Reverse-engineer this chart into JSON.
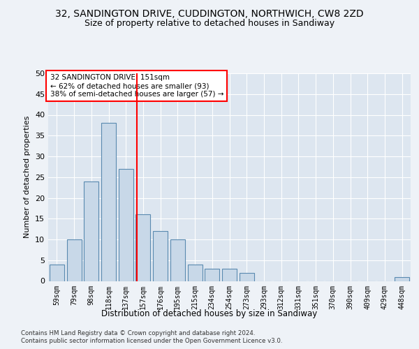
{
  "title_line1": "32, SANDINGTON DRIVE, CUDDINGTON, NORTHWICH, CW8 2ZD",
  "title_line2": "Size of property relative to detached houses in Sandiway",
  "xlabel": "Distribution of detached houses by size in Sandiway",
  "ylabel": "Number of detached properties",
  "categories": [
    "59sqm",
    "79sqm",
    "98sqm",
    "118sqm",
    "137sqm",
    "157sqm",
    "176sqm",
    "195sqm",
    "215sqm",
    "234sqm",
    "254sqm",
    "273sqm",
    "293sqm",
    "312sqm",
    "331sqm",
    "351sqm",
    "370sqm",
    "390sqm",
    "409sqm",
    "429sqm",
    "448sqm"
  ],
  "values": [
    4,
    10,
    24,
    38,
    27,
    16,
    12,
    10,
    4,
    3,
    3,
    2,
    0,
    0,
    0,
    0,
    0,
    0,
    0,
    0,
    1
  ],
  "bar_color": "#c8d8e8",
  "bar_edge_color": "#5a8ab0",
  "red_line_index": 5,
  "annotation_title": "32 SANDINGTON DRIVE: 151sqm",
  "annotation_line1": "← 62% of detached houses are smaller (93)",
  "annotation_line2": "38% of semi-detached houses are larger (57) →",
  "footer_line1": "Contains HM Land Registry data © Crown copyright and database right 2024.",
  "footer_line2": "Contains public sector information licensed under the Open Government Licence v3.0.",
  "ylim": [
    0,
    50
  ],
  "yticks": [
    0,
    5,
    10,
    15,
    20,
    25,
    30,
    35,
    40,
    45,
    50
  ],
  "bg_color": "#eef2f7",
  "plot_bg_color": "#dde6f0",
  "grid_color": "#ffffff",
  "title_fontsize": 10,
  "subtitle_fontsize": 9
}
